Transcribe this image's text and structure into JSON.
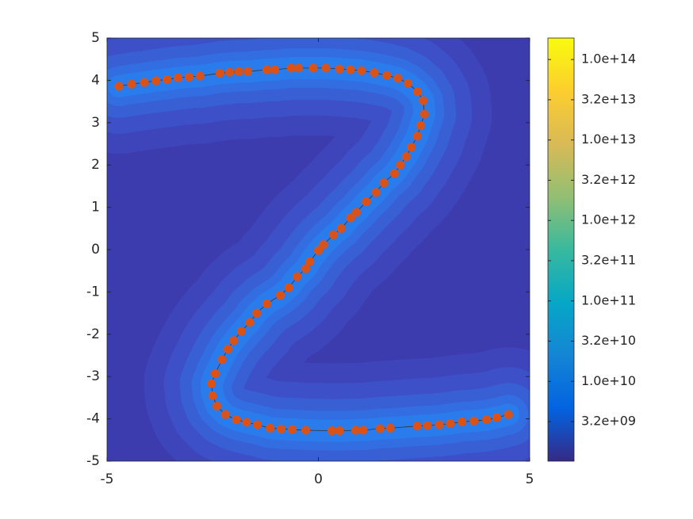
{
  "chart_data": {
    "type": "scatter",
    "xlim": [
      -5,
      5
    ],
    "ylim": [
      -5,
      5
    ],
    "xticks": [
      -5,
      0,
      5
    ],
    "yticks": [
      -5,
      -4,
      -3,
      -2,
      -1,
      0,
      1,
      2,
      3,
      4,
      5
    ],
    "series": [
      {
        "color": "#d95319",
        "x": [
          -4.72,
          -4.42,
          -4.12,
          -3.84,
          -3.58,
          -3.32,
          -3.06,
          -2.8,
          -2.33,
          -2.1,
          -1.88,
          -1.67,
          -1.22,
          -1.03,
          -0.64,
          -0.47,
          -0.12,
          0.18,
          0.5,
          0.76,
          1.02,
          1.32,
          1.62,
          1.88,
          2.12,
          2.35,
          2.48,
          2.51,
          2.42,
          2.34,
          2.2,
          2.08,
          1.94,
          1.8,
          1.55,
          1.36,
          1.13,
          0.9,
          0.76,
          0.54,
          0.36,
          0.12,
          0.0,
          -0.2,
          -0.3,
          -0.5,
          -0.7,
          -0.9,
          -1.22,
          -1.46,
          -1.62,
          -1.82,
          -2.0,
          -2.14,
          -2.28,
          -2.44,
          -2.53,
          -2.5,
          -2.4,
          -2.2,
          -1.94,
          -1.7,
          -1.44,
          -1.14,
          -0.88,
          -0.62,
          -0.3,
          0.32,
          0.5,
          0.88,
          1.06,
          1.46,
          1.7,
          2.34,
          2.58,
          2.86,
          3.12,
          3.4,
          3.68,
          3.98,
          4.22,
          4.5
        ],
        "y": [
          3.86,
          3.91,
          3.95,
          3.99,
          4.02,
          4.06,
          4.08,
          4.1,
          4.17,
          4.19,
          4.21,
          4.21,
          4.25,
          4.25,
          4.29,
          4.29,
          4.29,
          4.29,
          4.27,
          4.25,
          4.23,
          4.18,
          4.12,
          4.05,
          3.93,
          3.73,
          3.52,
          3.2,
          2.93,
          2.68,
          2.42,
          2.2,
          2.0,
          1.8,
          1.58,
          1.35,
          1.13,
          0.88,
          0.75,
          0.5,
          0.35,
          0.12,
          -0.02,
          -0.28,
          -0.45,
          -0.64,
          -0.9,
          -1.08,
          -1.28,
          -1.5,
          -1.72,
          -1.93,
          -2.15,
          -2.35,
          -2.6,
          -2.93,
          -3.17,
          -3.45,
          -3.7,
          -3.9,
          -4.02,
          -4.08,
          -4.14,
          -4.22,
          -4.24,
          -4.25,
          -4.27,
          -4.28,
          -4.28,
          -4.27,
          -4.27,
          -4.23,
          -4.22,
          -4.17,
          -4.16,
          -4.14,
          -4.11,
          -4.07,
          -4.05,
          -4.02,
          -3.97,
          -3.9
        ]
      }
    ],
    "colorbar": {
      "scale": "log",
      "lim": [
        1020000000,
        185000000000000
      ],
      "colormap": [
        "#352a87",
        "#0363e1",
        "#1485d4",
        "#06a7c6",
        "#38b99e",
        "#92bf73",
        "#d9ba56",
        "#fcce2e",
        "#f9fb0e"
      ],
      "ticks": [
        {
          "value": 3162277660,
          "label": "3.2e+09"
        },
        {
          "value": 10000000000,
          "label": "1.0e+10"
        },
        {
          "value": 31622776600,
          "label": "3.2e+10"
        },
        {
          "value": 100000000000,
          "label": "1.0e+11"
        },
        {
          "value": 316227766000,
          "label": "3.2e+11"
        },
        {
          "value": 1000000000000,
          "label": "1.0e+12"
        },
        {
          "value": 3162277660000,
          "label": "3.2e+12"
        },
        {
          "value": 10000000000000,
          "label": "1.0e+13"
        },
        {
          "value": 31622776600000,
          "label": "3.2e+13"
        },
        {
          "value": 100000000000000,
          "label": "1.0e+14"
        }
      ]
    }
  }
}
